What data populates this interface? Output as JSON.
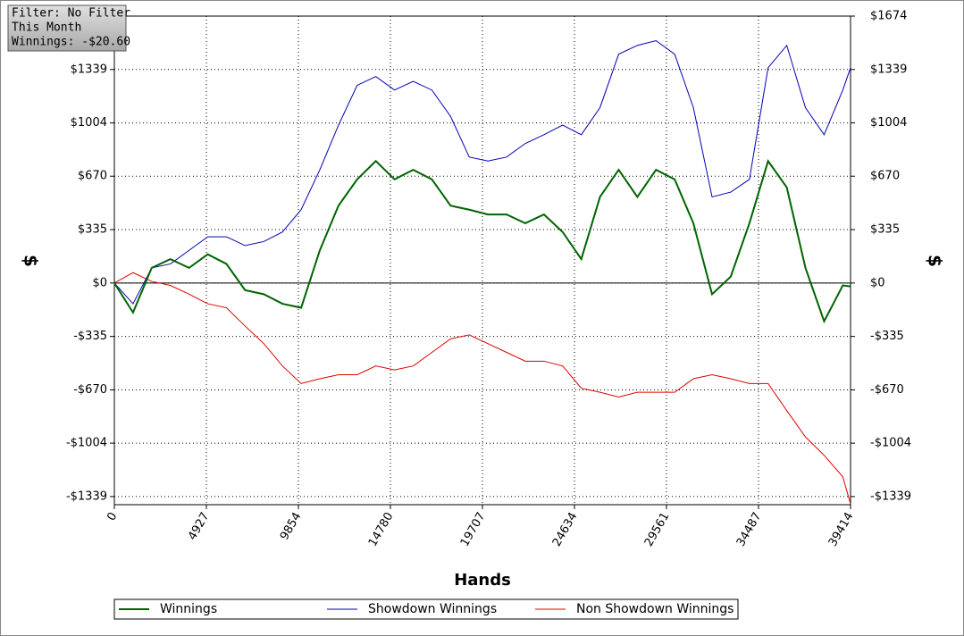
{
  "chart_data": {
    "type": "line",
    "annotations": [
      "Filter: No Filter",
      "This Month",
      "Winnings: -$20.60"
    ],
    "xlabel": "Hands",
    "ylabel": "$",
    "y2label": "$",
    "x": [
      0,
      1000,
      2000,
      3000,
      4000,
      5000,
      6000,
      7000,
      8000,
      9000,
      10000,
      11000,
      12000,
      13000,
      14000,
      15000,
      16000,
      17000,
      18000,
      19000,
      20000,
      21000,
      22000,
      23000,
      24000,
      25000,
      26000,
      27000,
      28000,
      29000,
      30000,
      31000,
      32000,
      33000,
      34000,
      35000,
      36000,
      37000,
      38000,
      39000,
      39414
    ],
    "series": [
      {
        "name": "Winnings",
        "color": "#006400",
        "values": [
          0,
          -185,
          95,
          150,
          95,
          180,
          120,
          -45,
          -70,
          -130,
          -155,
          205,
          485,
          650,
          765,
          650,
          710,
          650,
          485,
          460,
          430,
          430,
          375,
          430,
          320,
          150,
          540,
          710,
          540,
          710,
          650,
          375,
          -70,
          40,
          375,
          765,
          600,
          95,
          -240,
          -15,
          -21
        ]
      },
      {
        "name": "Showdown Winnings",
        "color": "#0000b4",
        "values": [
          0,
          -130,
          95,
          120,
          205,
          290,
          290,
          235,
          260,
          320,
          460,
          710,
          990,
          1240,
          1295,
          1210,
          1265,
          1210,
          1045,
          790,
          765,
          790,
          875,
          930,
          990,
          930,
          1100,
          1435,
          1490,
          1520,
          1435,
          1100,
          540,
          570,
          650,
          1350,
          1490,
          1100,
          930,
          1210,
          1350
        ]
      },
      {
        "name": "Non Showdown Winnings",
        "color": "#e00000",
        "values": [
          0,
          65,
          10,
          -15,
          -70,
          -130,
          -155,
          -270,
          -380,
          -520,
          -630,
          -600,
          -575,
          -575,
          -520,
          -545,
          -520,
          -435,
          -350,
          -325,
          -380,
          -435,
          -490,
          -490,
          -520,
          -660,
          -685,
          -715,
          -685,
          -685,
          -685,
          -600,
          -575,
          -600,
          -630,
          -630,
          -800,
          -965,
          -1080,
          -1215,
          -1385
        ]
      }
    ],
    "xlim": [
      0,
      39414
    ],
    "xticks": [
      0,
      4927,
      9854,
      14780,
      19707,
      24634,
      29561,
      34487,
      39414
    ],
    "ylim": [
      -1390,
      1674
    ],
    "yticks": [
      {
        "value": -1339,
        "label": "-$1339"
      },
      {
        "value": -1004,
        "label": "-$1004"
      },
      {
        "value": -670,
        "label": "-$670"
      },
      {
        "value": -335,
        "label": "-$335"
      },
      {
        "value": 0,
        "label": "$0"
      },
      {
        "value": 335,
        "label": "$335"
      },
      {
        "value": 670,
        "label": "$670"
      },
      {
        "value": 1004,
        "label": "$1004"
      },
      {
        "value": 1339,
        "label": "$1339"
      },
      {
        "value": 1674,
        "label": "$1674"
      }
    ],
    "grid": true,
    "legend": "bottom"
  }
}
